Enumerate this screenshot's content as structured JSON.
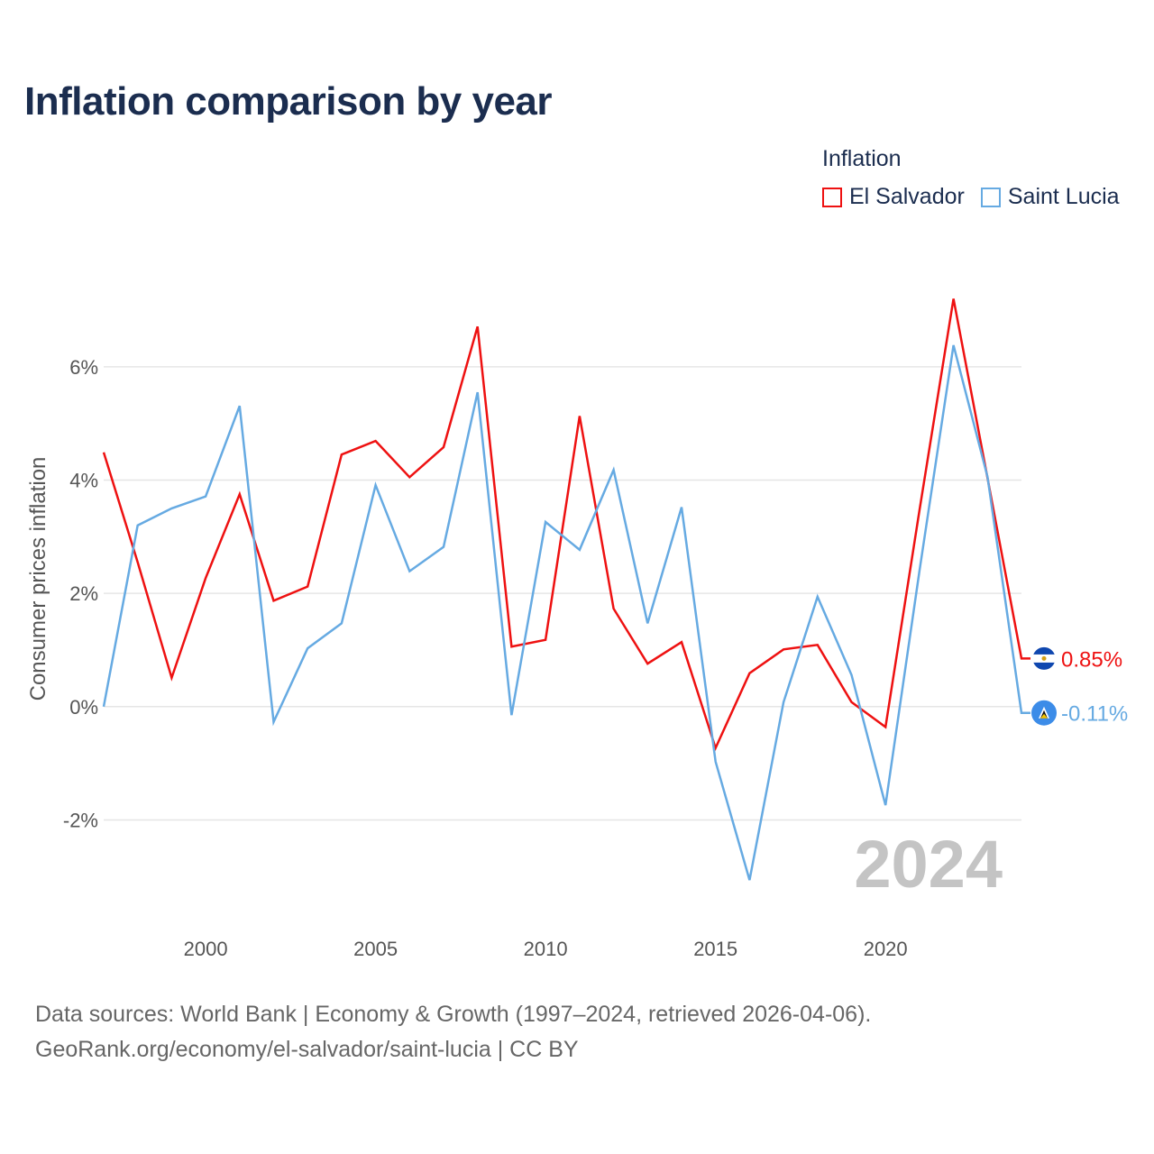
{
  "title": "Inflation comparison by year",
  "legend": {
    "title": "Inflation",
    "items": [
      {
        "label": "El Salvador",
        "color": "#ee1111"
      },
      {
        "label": "Saint Lucia",
        "color": "#66aae2"
      }
    ]
  },
  "footer": {
    "line1": "Data sources: World Bank | Economy & Growth (1997–2024, retrieved 2026-04-06).",
    "line2": "GeoRank.org/economy/el-salvador/saint-lucia | CC BY"
  },
  "chart_data": {
    "type": "line",
    "ylabel": "Consumer prices inflation",
    "xlabel": "",
    "ylim": [
      -3.6,
      7.7
    ],
    "xlim": [
      1997,
      2024
    ],
    "yticks": [
      {
        "value": 6,
        "label": "6%"
      },
      {
        "value": 4,
        "label": "4%"
      },
      {
        "value": 2,
        "label": "2%"
      },
      {
        "value": 0,
        "label": "0%"
      },
      {
        "value": -2,
        "label": "-2%"
      }
    ],
    "xticks": [
      {
        "value": 2000,
        "label": "2000"
      },
      {
        "value": 2005,
        "label": "2005"
      },
      {
        "value": 2010,
        "label": "2010"
      },
      {
        "value": 2015,
        "label": "2015"
      },
      {
        "value": 2020,
        "label": "2020"
      }
    ],
    "current_year": "2024",
    "x": [
      1997,
      1998,
      1999,
      2000,
      2001,
      2002,
      2003,
      2004,
      2005,
      2006,
      2007,
      2008,
      2009,
      2010,
      2011,
      2012,
      2013,
      2014,
      2015,
      2016,
      2017,
      2018,
      2019,
      2020,
      2021,
      2022,
      2023,
      2024
    ],
    "series": [
      {
        "name": "El Salvador",
        "color": "#ee1111",
        "end_label": "0.85%",
        "values": [
          4.49,
          2.55,
          0.51,
          2.27,
          3.75,
          1.87,
          2.12,
          4.45,
          4.69,
          4.05,
          4.58,
          6.71,
          1.06,
          1.18,
          5.13,
          1.73,
          0.76,
          1.14,
          -0.73,
          0.59,
          1.01,
          1.09,
          0.08,
          -0.36,
          3.47,
          7.2,
          4.04,
          0.85
        ]
      },
      {
        "name": "Saint Lucia",
        "color": "#66aae2",
        "end_label": "-0.11%",
        "values": [
          0.0,
          3.2,
          3.5,
          3.71,
          5.31,
          -0.27,
          1.03,
          1.47,
          3.91,
          2.39,
          2.82,
          5.55,
          -0.15,
          3.26,
          2.77,
          4.18,
          1.47,
          3.52,
          -0.97,
          -3.06,
          0.08,
          1.94,
          0.56,
          -1.74,
          2.4,
          6.38,
          4.06,
          -0.11
        ]
      }
    ]
  }
}
